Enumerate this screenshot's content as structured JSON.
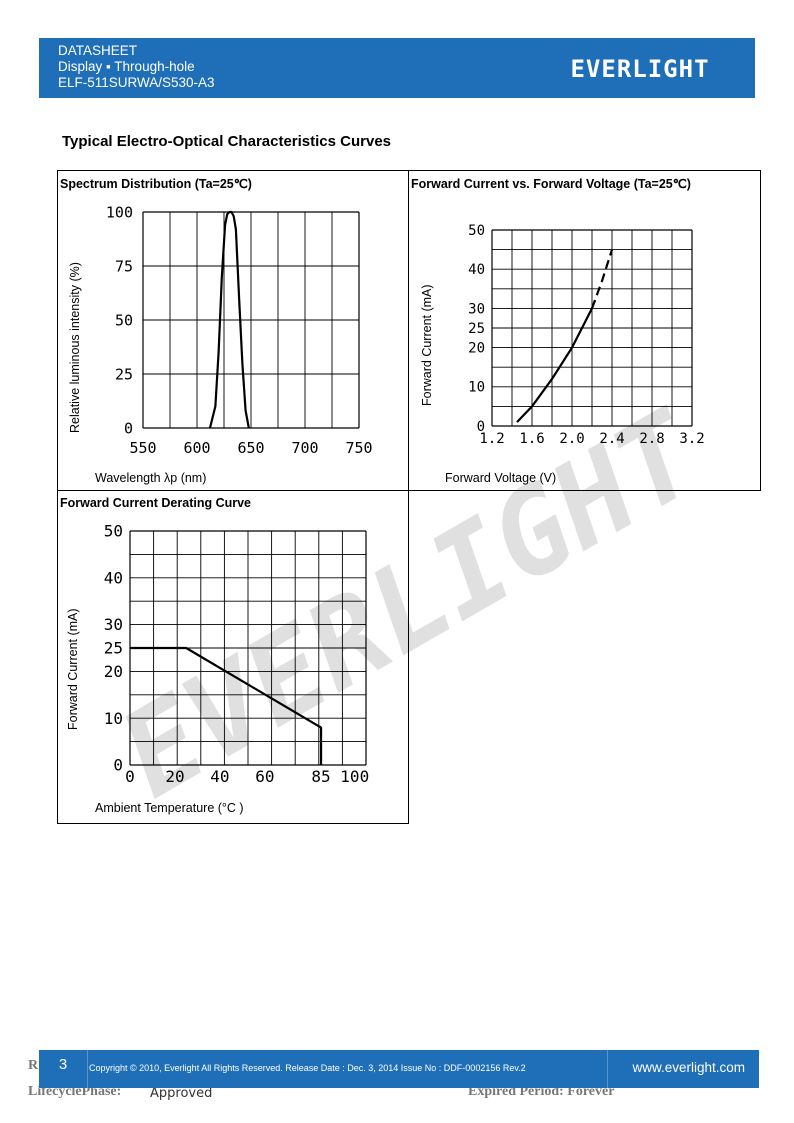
{
  "header": {
    "line1": "DATASHEET",
    "line2": "Display ▪ Through-hole",
    "line3": "ELF-511SURWA/S530-A3",
    "logo": "EVERLIGHT"
  },
  "section_title": "Typical Electro-Optical Characteristics Curves",
  "watermark": "EVERLIGHT",
  "panels": {
    "spectrum": {
      "title": "Spectrum Distribution (Ta=25℃)",
      "xlabel": "Wavelength λp (nm)",
      "ylabel": "Relative luminous intensity (%)"
    },
    "iv": {
      "title": "Forward Current vs. Forward Voltage (Ta=25℃)",
      "xlabel": "Forward Voltage (V)",
      "ylabel": "Forward Current (mA)"
    },
    "derating": {
      "title": "Forward Current Derating Curve",
      "xlabel": "Ambient Temperature (°C )",
      "ylabel": "Forward Current (mA)"
    }
  },
  "chart_data": [
    {
      "type": "line",
      "title": "Spectrum Distribution (Ta=25℃)",
      "xlabel": "Wavelength λp (nm)",
      "ylabel": "Relative luminous intensity (%)",
      "xlim": [
        550,
        750
      ],
      "ylim": [
        0,
        100
      ],
      "xticks": [
        "550",
        "600",
        "650",
        "700",
        "750"
      ],
      "yticks": [
        "0",
        "25",
        "50",
        "75",
        "100"
      ],
      "grid": true,
      "x": [
        612,
        617,
        620,
        623,
        626,
        628,
        630,
        632,
        634,
        636,
        639,
        642,
        645,
        648
      ],
      "y": [
        0,
        10,
        35,
        70,
        94,
        99,
        100,
        100,
        98,
        92,
        60,
        30,
        8,
        0
      ]
    },
    {
      "type": "line",
      "title": "Forward Current vs. Forward Voltage (Ta=25℃)",
      "xlabel": "Forward Voltage (V)",
      "ylabel": "Forward Current (mA)",
      "xlim": [
        1.2,
        3.2
      ],
      "ylim": [
        0,
        50
      ],
      "xticks": [
        "1.2",
        "1.6",
        "2.0",
        "2.4",
        "2.8",
        "3.2"
      ],
      "yticks": [
        "0",
        "10",
        "20",
        "25",
        "30",
        "40",
        "50"
      ],
      "grid": true,
      "x": [
        1.45,
        1.6,
        1.8,
        2.0,
        2.1,
        2.2,
        2.3,
        2.4
      ],
      "y": [
        1,
        5,
        12,
        20,
        25,
        30,
        37,
        45
      ],
      "dashed_from_x": 2.2
    },
    {
      "type": "line",
      "title": "Forward Current Derating Curve",
      "xlabel": "Ambient Temperature (°C )",
      "ylabel": "Forward Current (mA)",
      "xlim": [
        0,
        105
      ],
      "ylim": [
        0,
        50
      ],
      "xticks": [
        "0",
        "20",
        "40",
        "60",
        "85",
        "100"
      ],
      "yticks": [
        "0",
        "10",
        "20",
        "25",
        "30",
        "40",
        "50"
      ],
      "grid": true,
      "x": [
        0,
        25,
        85,
        85
      ],
      "y": [
        25,
        25,
        8,
        0
      ]
    }
  ],
  "footer": {
    "page": "3",
    "copyright": "Copyright © 2010, Everlight All Rights Reserved. Release Date : Dec. 3, 2014   Issue No : DDF-0002156   Rev.2",
    "url": "www.everlight.com",
    "lifecycle": "LifecyclePhase:",
    "lifecycle_value": "Approved",
    "expired": "Expired Period: Forever",
    "left_r": "R"
  }
}
